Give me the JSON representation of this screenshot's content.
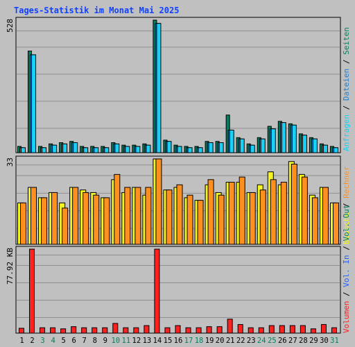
{
  "title": "Tages-Statistik im Monat Mai 2025",
  "colors": {
    "background": "#c0c0c0",
    "title": "#1040ff",
    "grid": "#909090",
    "anfragen": "#008060",
    "dateien": "#1a7fd6",
    "seiten": "#19d0f5",
    "besuche": "#f5f520",
    "rechner": "#ff9020",
    "vol_in": "#2060ff",
    "vol_out": "#008060",
    "volumen": "#ff2020",
    "weekend_label": "#008060"
  },
  "chart_data": [
    {
      "type": "bar",
      "title": "Tages-Statistik im Monat Mai 2025",
      "categories": [
        "1",
        "2",
        "3",
        "4",
        "5",
        "6",
        "7",
        "8",
        "9",
        "10",
        "11",
        "12",
        "13",
        "14",
        "15",
        "16",
        "17",
        "18",
        "19",
        "20",
        "21",
        "22",
        "23",
        "24",
        "25",
        "26",
        "27",
        "28",
        "29",
        "30",
        "31"
      ],
      "weekend_days": [
        "3",
        "4",
        "10",
        "11",
        "17",
        "18",
        "24",
        "25",
        "31"
      ],
      "ylim": [
        0,
        528
      ],
      "ytick_label": "528",
      "series_labels": [
        "Anfragen",
        "Dateien",
        "Seiten"
      ],
      "series": [
        {
          "values": [
            25,
            405,
            25,
            35,
            40,
            45,
            25,
            25,
            25,
            40,
            30,
            30,
            35,
            528,
            50,
            30,
            25,
            25,
            45,
            45,
            150,
            60,
            35,
            60,
            105,
            125,
            115,
            75,
            60,
            35,
            25
          ]
        },
        {
          "values": [
            20,
            390,
            20,
            30,
            35,
            40,
            20,
            20,
            20,
            35,
            25,
            25,
            30,
            515,
            45,
            25,
            20,
            20,
            40,
            40,
            90,
            55,
            30,
            55,
            95,
            120,
            110,
            70,
            55,
            30,
            20
          ]
        },
        {
          "values": [
            20,
            390,
            20,
            30,
            35,
            40,
            20,
            20,
            20,
            35,
            25,
            25,
            30,
            515,
            45,
            25,
            20,
            20,
            40,
            40,
            90,
            55,
            30,
            55,
            95,
            120,
            110,
            70,
            55,
            30,
            20
          ]
        }
      ]
    },
    {
      "type": "bar",
      "ylim": [
        0,
        33
      ],
      "ytick_label": "33",
      "series_labels": [
        "Besuche",
        "Rechner"
      ],
      "series": [
        {
          "values": [
            16,
            22,
            18,
            20,
            16,
            22,
            21,
            20,
            18,
            25,
            20,
            22,
            19,
            33,
            21,
            22,
            18,
            17,
            23,
            20,
            24,
            24,
            20,
            23,
            28,
            23,
            32,
            27,
            19,
            22,
            16
          ]
        },
        {
          "values": [
            16,
            22,
            18,
            20,
            14,
            22,
            20,
            19,
            18,
            27,
            22,
            22,
            22,
            33,
            21,
            23,
            19,
            17,
            25,
            19,
            24,
            26,
            20,
            21,
            25,
            24,
            31,
            26,
            18,
            22,
            16
          ]
        }
      ]
    },
    {
      "type": "bar",
      "ylim": [
        0,
        77.92
      ],
      "ytick_label": "77.92 KB",
      "series_labels": [
        "Volumen",
        "Vol. In",
        "Vol. Out"
      ],
      "series": [
        {
          "values": [
            4.5,
            77.92,
            5,
            5,
            4,
            6,
            5,
            5,
            5,
            9,
            5,
            5,
            7,
            77.92,
            5,
            7,
            5,
            5,
            6,
            6,
            13,
            8,
            5,
            5,
            7,
            7,
            7,
            7,
            4,
            8,
            5
          ]
        }
      ]
    }
  ]
}
